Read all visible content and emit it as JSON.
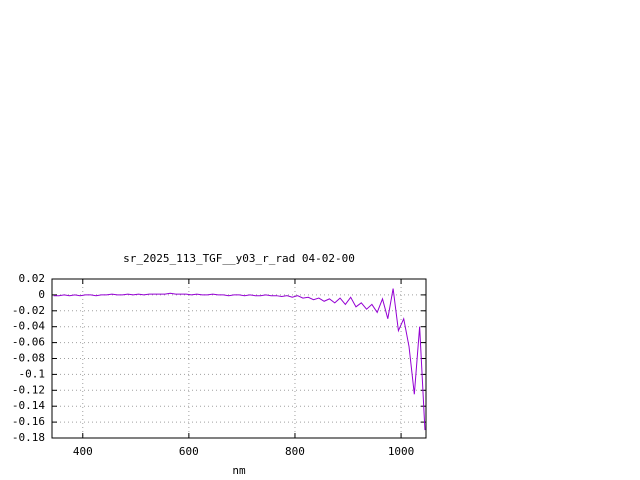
{
  "chart_data": {
    "type": "line",
    "title": "sr_2025_113_TGF__y03_r_rad 04-02-00",
    "x_label": "nm",
    "x": [
      345,
      355,
      365,
      375,
      385,
      395,
      405,
      415,
      425,
      435,
      445,
      455,
      465,
      475,
      485,
      495,
      505,
      515,
      525,
      535,
      545,
      555,
      565,
      575,
      585,
      595,
      605,
      615,
      625,
      635,
      645,
      655,
      665,
      675,
      685,
      695,
      705,
      715,
      725,
      735,
      745,
      755,
      765,
      775,
      785,
      795,
      805,
      815,
      825,
      835,
      845,
      855,
      865,
      875,
      885,
      895,
      905,
      915,
      925,
      935,
      945,
      955,
      965,
      975,
      985,
      995,
      1005,
      1015,
      1025,
      1035,
      1045
    ],
    "series": [
      {
        "color": "#9400d3",
        "values": [
          -0.001,
          -0.001,
          0,
          -0.001,
          0,
          -0.001,
          0,
          0,
          -0.001,
          0,
          0,
          0.001,
          0,
          0,
          0.001,
          0,
          0.001,
          0,
          0.001,
          0.001,
          0.001,
          0.001,
          0.002,
          0.001,
          0.001,
          0.001,
          0,
          0.001,
          0,
          0,
          0.001,
          0,
          0,
          -0.001,
          0,
          0,
          -0.001,
          0,
          -0.001,
          -0.001,
          0,
          -0.001,
          -0.001,
          -0.002,
          -0.001,
          -0.003,
          -0.001,
          -0.004,
          -0.003,
          -0.006,
          -0.004,
          -0.008,
          -0.005,
          -0.01,
          -0.004,
          -0.012,
          -0.003,
          -0.015,
          -0.01,
          -0.018,
          -0.012,
          -0.022,
          -0.005,
          -0.03,
          0.008,
          -0.045,
          -0.03,
          -0.065,
          -0.125,
          -0.04,
          -0.17
        ]
      }
    ],
    "xlim": [
      342,
      1047
    ],
    "ylim": [
      -0.18,
      0.02
    ],
    "xticks": [
      400,
      600,
      800,
      1000
    ],
    "yticks": [
      0.02,
      0,
      -0.02,
      -0.04,
      -0.06,
      -0.08,
      -0.1,
      -0.12,
      -0.14,
      -0.16,
      -0.18
    ],
    "grid": true
  }
}
